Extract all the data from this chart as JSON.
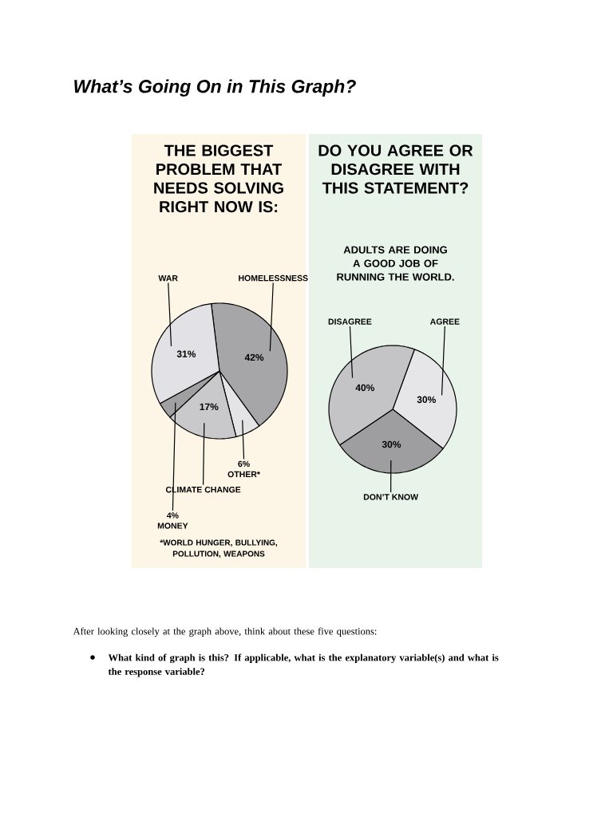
{
  "chart_data": [
    {
      "type": "other",
      "title": "What’s Going On in This Graph?"
    },
    {
      "type": "pie",
      "title": "THE BIGGEST PROBLEM THAT NEEDS SOLVING RIGHT NOW IS:",
      "categories": [
        "HOMELESSNESS",
        "OTHER*",
        "CLIMATE CHANGE",
        "MONEY",
        "WAR"
      ],
      "values": [
        42,
        6,
        17,
        4,
        31
      ],
      "colors": [
        "#a6a6a8",
        "#e4e4e6",
        "#c9c9cb",
        "#a0a0a2",
        "#e2e2e6"
      ],
      "value_labels": [
        "42%",
        "6%",
        "17%",
        "4%",
        "31%"
      ],
      "annotations": [
        "*WORLD HUNGER, BULLYING, POLLUTION, WEAPONS"
      ]
    },
    {
      "type": "pie",
      "title": "DO YOU AGREE OR DISAGREE WITH THIS STATEMENT?",
      "subtitle": "ADULTS ARE DOING A GOOD JOB OF RUNNING THE WORLD.",
      "categories": [
        "AGREE",
        "DON’T KNOW",
        "DISAGREE"
      ],
      "values": [
        30,
        30,
        40
      ],
      "colors": [
        "#e6e6e8",
        "#9e9ea0",
        "#c4c4c6"
      ],
      "value_labels": [
        "30%",
        "30%",
        "40%"
      ]
    },
    {
      "type": "other",
      "annotations": [
        "After looking closely at the graph above, think about these five questions:",
        "What kind of graph is this? If applicable, what is the explanatory variable(s) and what is the response variable?"
      ]
    }
  ]
}
